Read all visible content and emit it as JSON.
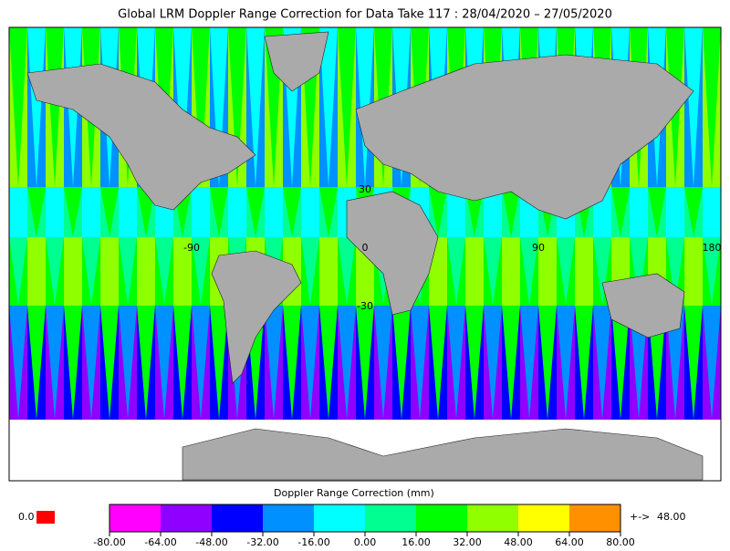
{
  "title": "Global LRM Doppler Range Correction for Data Take 117 : 28/04/2020 – 27/05/2020",
  "map": {
    "lon_labels": [
      -90,
      0,
      90,
      180
    ],
    "lat_labels": [
      30,
      -30
    ]
  },
  "legend": {
    "title": "Doppler Range Correction (mm)",
    "colors": [
      "#ff00ff",
      "#9000ff",
      "#0000ff",
      "#0090ff",
      "#00ffff",
      "#00ff90",
      "#00ff00",
      "#90ff00",
      "#ffff00",
      "#ff9000"
    ],
    "ticks": [
      {
        "value": -80,
        "label": "-80.00"
      },
      {
        "value": -64,
        "label": "-64.00"
      },
      {
        "value": -48,
        "label": "-48.00"
      },
      {
        "value": -32,
        "label": "-32.00"
      },
      {
        "value": -16,
        "label": "-16.00"
      },
      {
        "value": 0,
        "label": "0.00"
      },
      {
        "value": 16,
        "label": "16.00"
      },
      {
        "value": 32,
        "label": "32.00"
      },
      {
        "value": 48,
        "label": "48.00"
      },
      {
        "value": 64,
        "label": "64.00"
      },
      {
        "value": 80,
        "label": "80.00"
      }
    ],
    "missing_label": "0.0",
    "missing_color": "#ff0000",
    "overflow_arrow": "+->",
    "overflow_color": "#ff9000",
    "overflow_value": {
      "value": 48,
      "label": "48.00"
    }
  }
}
